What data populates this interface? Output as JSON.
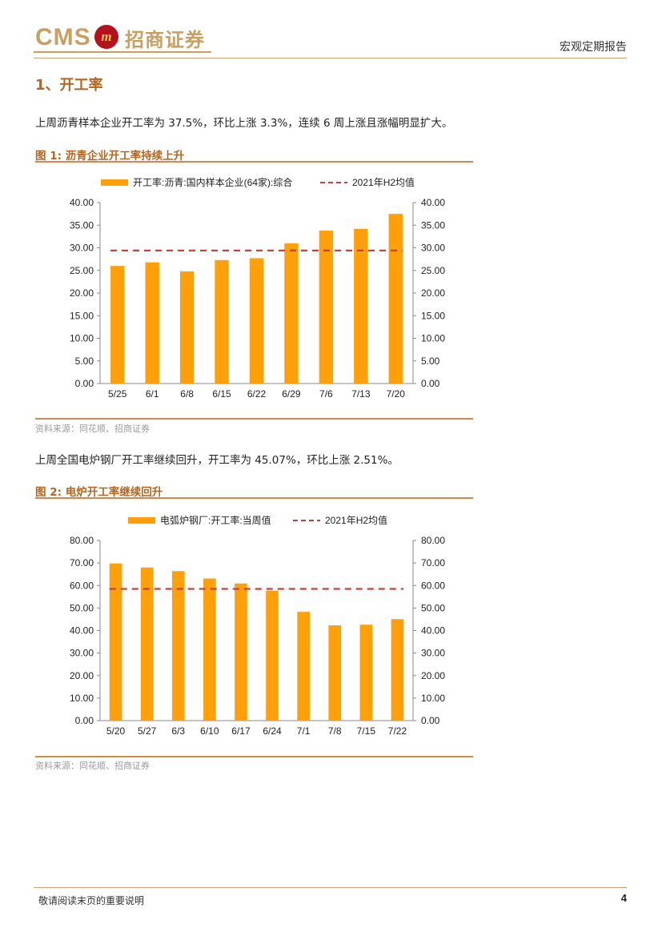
{
  "header": {
    "logo_latin": "CMS",
    "logo_seal": "m",
    "logo_cn": "招商证券",
    "report_type": "宏观定期报告"
  },
  "section": {
    "heading": "1、开工率"
  },
  "paragraphs": [
    "上周沥青样本企业开工率为 37.5%，环比上涨 3.3%，连续 6 周上涨且涨幅明显扩大。",
    "上周全国电炉钢厂开工率继续回升，开工率为 45.07%，环比上涨 2.51%。"
  ],
  "figures": [
    {
      "title": "图 1:  沥青企业开工率持续上升",
      "source": "资料来源：同花顺、招商证券"
    },
    {
      "title": "图 2:  电炉开工率继续回升",
      "source": "资料来源：同花顺、招商证券"
    }
  ],
  "footer": {
    "notice": "敬请阅读末页的重要说明",
    "page": "4"
  },
  "colors": {
    "bar": "#ff9f0a",
    "avg_line": "#c8403a",
    "accent": "#b5651d"
  },
  "chart_data": [
    {
      "type": "bar",
      "categories": [
        "5/25",
        "6/1",
        "6/8",
        "6/15",
        "6/22",
        "6/29",
        "7/6",
        "7/13",
        "7/20"
      ],
      "series": [
        {
          "name": "开工率:沥青:国内样本企业(64家):综合",
          "kind": "bar",
          "values": [
            26.0,
            26.8,
            24.8,
            27.3,
            27.7,
            31.0,
            33.8,
            34.2,
            37.5
          ]
        },
        {
          "name": "2021年H2均值",
          "kind": "dashed-line",
          "value": 29.4
        }
      ],
      "ylim": [
        0,
        40
      ],
      "yticks": [
        "0.00",
        "5.00",
        "10.00",
        "15.00",
        "20.00",
        "25.00",
        "30.00",
        "35.00",
        "40.00"
      ],
      "dual_axis": true,
      "grid": false,
      "legend": "top"
    },
    {
      "type": "bar",
      "categories": [
        "5/20",
        "5/27",
        "6/3",
        "6/10",
        "6/17",
        "6/24",
        "7/1",
        "7/8",
        "7/15",
        "7/22"
      ],
      "series": [
        {
          "name": "电弧炉钢厂:开工率:当周值",
          "kind": "bar",
          "values": [
            69.8,
            68.0,
            66.4,
            63.1,
            60.9,
            57.7,
            48.3,
            42.3,
            42.6,
            45.07
          ]
        },
        {
          "name": "2021年H2均值",
          "kind": "dashed-line",
          "value": 58.5
        }
      ],
      "ylim": [
        0,
        80
      ],
      "yticks": [
        "0.00",
        "10.00",
        "20.00",
        "30.00",
        "40.00",
        "50.00",
        "60.00",
        "70.00",
        "80.00"
      ],
      "dual_axis": true,
      "grid": false,
      "legend": "top"
    }
  ]
}
